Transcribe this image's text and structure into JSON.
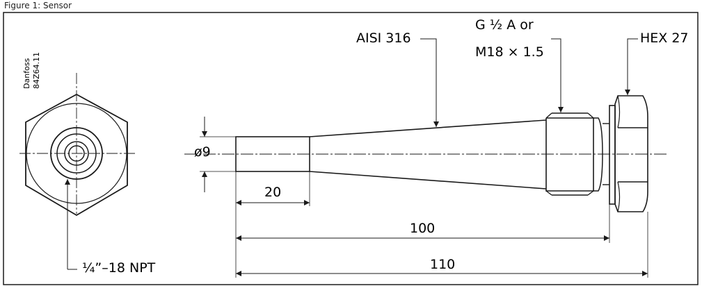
{
  "header": {
    "caption": "Figure 1: Sensor"
  },
  "hex_view": {
    "stamp_line1": "Danfoss",
    "stamp_line2": "84Z64.11",
    "thread_label": "¼”–18 NPT"
  },
  "side_view": {
    "material_label": "AISI 316",
    "thread_label_line1": "G ½ A or",
    "thread_label_line2": "M18 × 1.5",
    "hex_label": "HEX 27",
    "diameter_label": "ø9",
    "dim_tip_length": "20",
    "dim_length_100": "100",
    "dim_length_110": "110"
  },
  "colors": {
    "line": "#1a1a1a",
    "background": "#ffffff"
  }
}
